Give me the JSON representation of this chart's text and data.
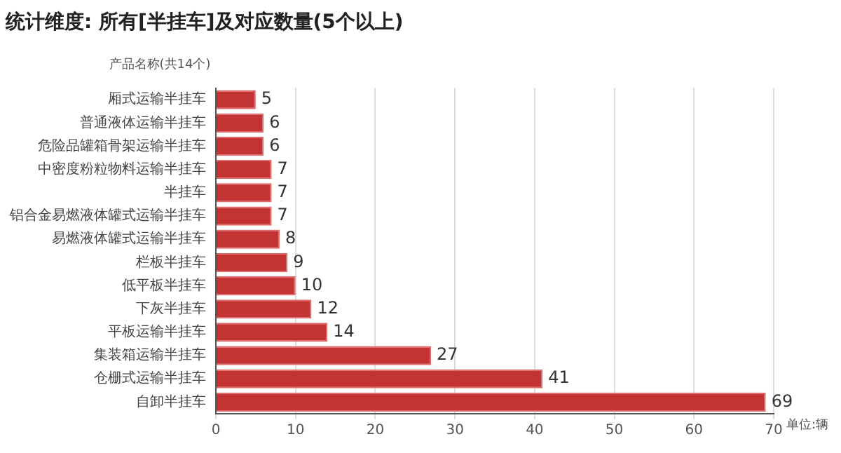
{
  "chart_data": {
    "type": "bar",
    "orientation": "horizontal",
    "title": "统计维度: 所有[半挂车]及对应数量(5个以上)",
    "ylabel": "产品名称(共14个)",
    "xlabel": "单位:辆",
    "categories": [
      "厢式运输半挂车",
      "普通液体运输半挂车",
      "危险品罐箱骨架运输半挂车",
      "中密度粉粒物料运输半挂车",
      "半挂车",
      "铝合金易燃液体罐式运输半挂车",
      "易燃液体罐式运输半挂车",
      "栏板半挂车",
      "低平板半挂车",
      "下灰半挂车",
      "平板运输半挂车",
      "集装箱运输半挂车",
      "仓栅式运输半挂车",
      "自卸半挂车"
    ],
    "values": [
      5,
      6,
      6,
      7,
      7,
      7,
      8,
      9,
      10,
      12,
      14,
      27,
      41,
      69
    ],
    "color": "#c33333",
    "xlim": [
      0,
      70
    ],
    "xticks": [
      0,
      10,
      20,
      30,
      40,
      50,
      60,
      70
    ],
    "grid": "x",
    "data_labels": true,
    "legend": false
  }
}
